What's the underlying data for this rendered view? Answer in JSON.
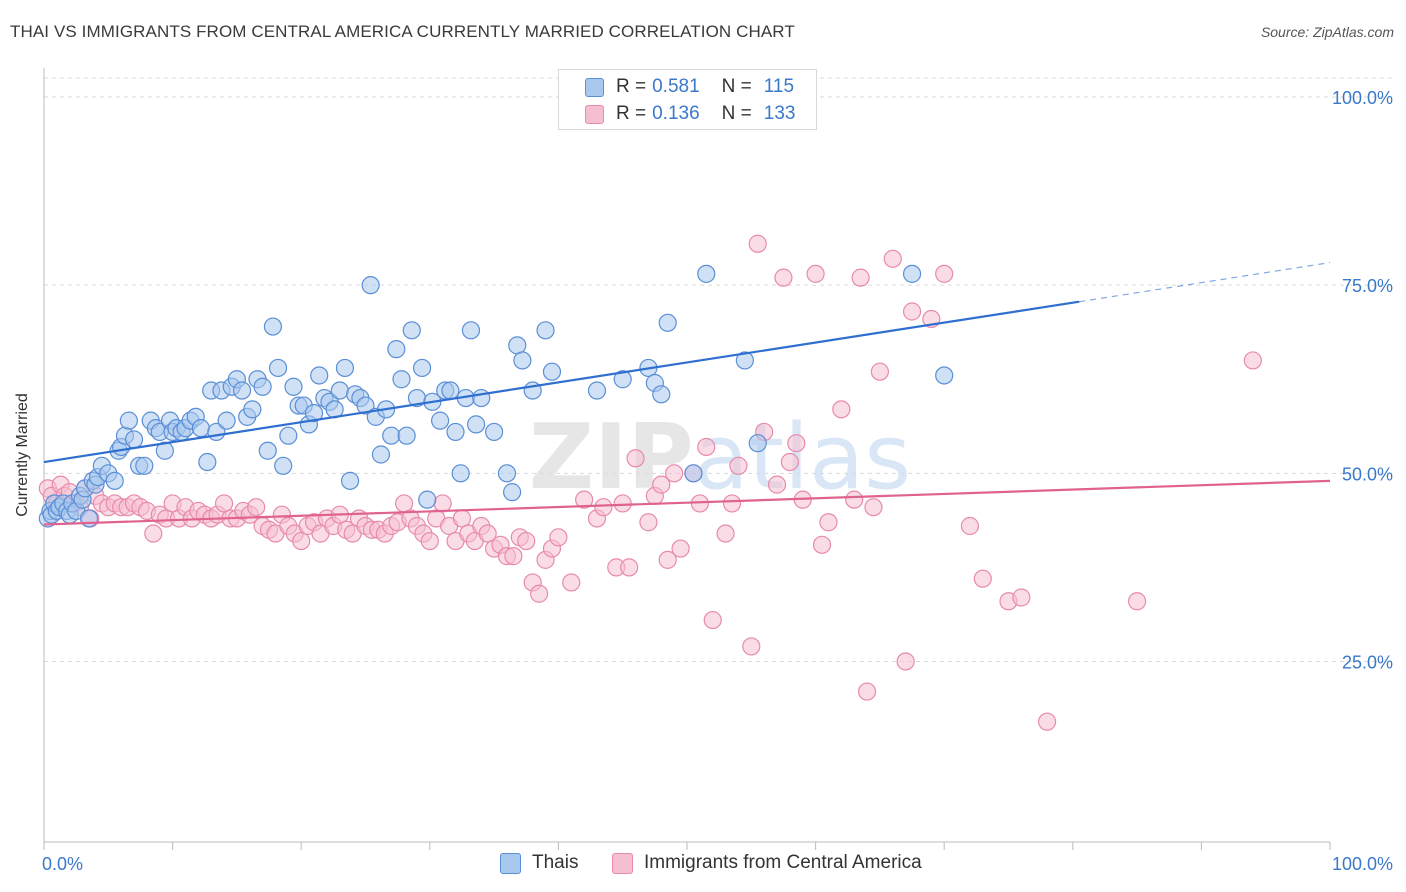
{
  "title": "THAI VS IMMIGRANTS FROM CENTRAL AMERICA CURRENTLY MARRIED CORRELATION CHART",
  "source": "Source: ZipAtlas.com",
  "colors": {
    "blue_fill": "#a9c8ee",
    "blue_stroke": "#5a8fd6",
    "blue_line": "#2f6fcf",
    "pink_fill": "#f5bfd1",
    "pink_stroke": "#e88aab",
    "pink_line": "#e0628e",
    "axis_text": "#3a78c9",
    "grid": "#d9d9d9"
  },
  "legend_top": {
    "rows": [
      {
        "r_label": "R =",
        "r_value": "0.581",
        "n_label": "N =",
        "n_value": "115"
      },
      {
        "r_label": "R =",
        "r_value": "0.136",
        "n_label": "N =",
        "n_value": "133"
      }
    ]
  },
  "chart_data": {
    "type": "scatter",
    "title": "THAI VS IMMIGRANTS FROM CENTRAL AMERICA CURRENTLY MARRIED CORRELATION CHART",
    "xlabel": "",
    "ylabel": "Currently Married",
    "xlim": [
      0,
      100
    ],
    "ylim": [
      5,
      100
    ],
    "x_tick_labels": [
      "0.0%",
      "100.0%"
    ],
    "y_tick_labels": [
      "25.0%",
      "50.0%",
      "75.0%",
      "100.0%"
    ],
    "y_ticks": [
      25,
      50,
      75,
      100
    ],
    "grid": true,
    "legend_position": "bottom",
    "watermark": "ZIPatlas",
    "series": [
      {
        "name": "Thais",
        "R": 0.581,
        "N": 115,
        "trend": {
          "x0": 0,
          "y0": 51.5,
          "x1": 80.5,
          "y1": 72.8,
          "dash_x1": 100,
          "dash_y1": 78
        },
        "points": [
          [
            0.3,
            44
          ],
          [
            0.5,
            45
          ],
          [
            0.6,
            44.5
          ],
          [
            0.8,
            46
          ],
          [
            1,
            45
          ],
          [
            1.2,
            45.5
          ],
          [
            1.5,
            46
          ],
          [
            1.8,
            45
          ],
          [
            2,
            44.5
          ],
          [
            2.2,
            46
          ],
          [
            2.5,
            45
          ],
          [
            2.8,
            47
          ],
          [
            3,
            46.5
          ],
          [
            3.2,
            48
          ],
          [
            3.5,
            44
          ],
          [
            3.8,
            49
          ],
          [
            4,
            48.5
          ],
          [
            4.2,
            49.5
          ],
          [
            4.5,
            51
          ],
          [
            5,
            50
          ],
          [
            5.5,
            49
          ],
          [
            5.8,
            53
          ],
          [
            6,
            53.5
          ],
          [
            6.3,
            55
          ],
          [
            6.6,
            57
          ],
          [
            7,
            54.5
          ],
          [
            7.4,
            51
          ],
          [
            7.8,
            51
          ],
          [
            8.3,
            57
          ],
          [
            8.7,
            56
          ],
          [
            9,
            55.5
          ],
          [
            9.4,
            53
          ],
          [
            9.8,
            57
          ],
          [
            10,
            55.5
          ],
          [
            10.3,
            56
          ],
          [
            10.7,
            55.5
          ],
          [
            11,
            56
          ],
          [
            11.4,
            57
          ],
          [
            11.8,
            57.5
          ],
          [
            12.2,
            56
          ],
          [
            12.7,
            51.5
          ],
          [
            13,
            61
          ],
          [
            13.4,
            55.5
          ],
          [
            13.8,
            61
          ],
          [
            14.2,
            57
          ],
          [
            14.6,
            61.5
          ],
          [
            15,
            62.5
          ],
          [
            15.4,
            61
          ],
          [
            15.8,
            57.5
          ],
          [
            16.2,
            58.5
          ],
          [
            16.6,
            62.5
          ],
          [
            17,
            61.5
          ],
          [
            17.4,
            53
          ],
          [
            17.8,
            69.5
          ],
          [
            18.2,
            64
          ],
          [
            18.6,
            51
          ],
          [
            19,
            55
          ],
          [
            19.4,
            61.5
          ],
          [
            19.8,
            59
          ],
          [
            20.2,
            59
          ],
          [
            20.6,
            56.5
          ],
          [
            21,
            58
          ],
          [
            21.4,
            63
          ],
          [
            21.8,
            60
          ],
          [
            22.2,
            59.5
          ],
          [
            22.6,
            58.5
          ],
          [
            23,
            61
          ],
          [
            23.4,
            64
          ],
          [
            23.8,
            49
          ],
          [
            24.2,
            60.5
          ],
          [
            24.6,
            60
          ],
          [
            25,
            59
          ],
          [
            25.4,
            75
          ],
          [
            25.8,
            57.5
          ],
          [
            26.2,
            52.5
          ],
          [
            26.6,
            58.5
          ],
          [
            27,
            55
          ],
          [
            27.4,
            66.5
          ],
          [
            27.8,
            62.5
          ],
          [
            28.2,
            55
          ],
          [
            28.6,
            69
          ],
          [
            29,
            60
          ],
          [
            29.4,
            64
          ],
          [
            29.8,
            46.5
          ],
          [
            30.2,
            59.5
          ],
          [
            30.8,
            57
          ],
          [
            31.2,
            61
          ],
          [
            31.6,
            61
          ],
          [
            32,
            55.5
          ],
          [
            32.4,
            50
          ],
          [
            32.8,
            60
          ],
          [
            33.2,
            69
          ],
          [
            33.6,
            56.5
          ],
          [
            34,
            60
          ],
          [
            35,
            55.5
          ],
          [
            36,
            50
          ],
          [
            36.4,
            47.5
          ],
          [
            36.8,
            67
          ],
          [
            37.2,
            65
          ],
          [
            38,
            61
          ],
          [
            39,
            69
          ],
          [
            39.5,
            63.5
          ],
          [
            43,
            61
          ],
          [
            45,
            62.5
          ],
          [
            47,
            64
          ],
          [
            47.5,
            62
          ],
          [
            48,
            60.5
          ],
          [
            48.5,
            70
          ],
          [
            50.5,
            50
          ],
          [
            51.5,
            76.5
          ],
          [
            54.5,
            65
          ],
          [
            55.5,
            54
          ],
          [
            67.5,
            76.5
          ],
          [
            70,
            63
          ]
        ]
      },
      {
        "name": "Immigrants from Central America",
        "R": 0.136,
        "N": 133,
        "trend": {
          "x0": 0,
          "y0": 43.2,
          "x1": 100,
          "y1": 49
        },
        "points": [
          [
            0.3,
            48
          ],
          [
            0.6,
            47
          ],
          [
            1,
            46
          ],
          [
            1.3,
            48.5
          ],
          [
            1.6,
            47
          ],
          [
            2,
            47.5
          ],
          [
            2.4,
            46
          ],
          [
            2.8,
            45.5
          ],
          [
            3.2,
            48
          ],
          [
            3.6,
            44
          ],
          [
            4,
            47
          ],
          [
            4.5,
            46
          ],
          [
            5,
            45.5
          ],
          [
            5.5,
            46
          ],
          [
            6,
            45.5
          ],
          [
            6.5,
            45.5
          ],
          [
            7,
            46
          ],
          [
            7.5,
            45.5
          ],
          [
            8,
            45
          ],
          [
            8.5,
            42
          ],
          [
            9,
            44.5
          ],
          [
            9.5,
            44
          ],
          [
            10,
            46
          ],
          [
            10.5,
            44
          ],
          [
            11,
            45.5
          ],
          [
            11.5,
            44
          ],
          [
            12,
            45
          ],
          [
            12.5,
            44.5
          ],
          [
            13,
            44
          ],
          [
            13.5,
            44.5
          ],
          [
            14,
            46
          ],
          [
            14.5,
            44
          ],
          [
            15,
            44
          ],
          [
            15.5,
            45
          ],
          [
            16,
            44.5
          ],
          [
            16.5,
            45.5
          ],
          [
            17,
            43
          ],
          [
            17.5,
            42.5
          ],
          [
            18,
            42
          ],
          [
            18.5,
            44.5
          ],
          [
            19,
            43
          ],
          [
            19.5,
            42
          ],
          [
            20,
            41
          ],
          [
            20.5,
            43
          ],
          [
            21,
            43.5
          ],
          [
            21.5,
            42
          ],
          [
            22,
            44
          ],
          [
            22.5,
            43
          ],
          [
            23,
            44.5
          ],
          [
            23.5,
            42.5
          ],
          [
            24,
            42
          ],
          [
            24.5,
            44
          ],
          [
            25,
            43
          ],
          [
            25.5,
            42.5
          ],
          [
            26,
            42.5
          ],
          [
            26.5,
            42
          ],
          [
            27,
            43
          ],
          [
            27.5,
            43.5
          ],
          [
            28,
            46
          ],
          [
            28.5,
            44
          ],
          [
            29,
            43
          ],
          [
            29.5,
            42
          ],
          [
            30,
            41
          ],
          [
            30.5,
            44
          ],
          [
            31,
            46
          ],
          [
            31.5,
            43
          ],
          [
            32,
            41
          ],
          [
            32.5,
            44
          ],
          [
            33,
            42
          ],
          [
            33.5,
            41
          ],
          [
            34,
            43
          ],
          [
            34.5,
            42
          ],
          [
            35,
            40
          ],
          [
            35.5,
            40.5
          ],
          [
            36,
            39
          ],
          [
            36.5,
            39
          ],
          [
            37,
            41.5
          ],
          [
            37.5,
            41
          ],
          [
            38,
            35.5
          ],
          [
            38.5,
            34
          ],
          [
            39,
            38.5
          ],
          [
            39.5,
            40
          ],
          [
            40,
            41.5
          ],
          [
            41,
            35.5
          ],
          [
            42,
            46.5
          ],
          [
            43,
            44
          ],
          [
            43.5,
            45.5
          ],
          [
            44.5,
            37.5
          ],
          [
            45,
            46
          ],
          [
            45.5,
            37.5
          ],
          [
            46,
            52
          ],
          [
            47,
            43.5
          ],
          [
            47.5,
            47
          ],
          [
            48,
            48.5
          ],
          [
            48.5,
            38.5
          ],
          [
            49,
            50
          ],
          [
            49.5,
            40
          ],
          [
            50.5,
            50
          ],
          [
            51,
            46
          ],
          [
            51.5,
            53.5
          ],
          [
            52,
            30.5
          ],
          [
            53,
            42
          ],
          [
            53.5,
            46
          ],
          [
            54,
            51
          ],
          [
            55,
            27
          ],
          [
            55.5,
            80.5
          ],
          [
            56,
            55.5
          ],
          [
            57,
            48.5
          ],
          [
            57.5,
            76
          ],
          [
            58,
            51.5
          ],
          [
            58.5,
            54
          ],
          [
            59,
            46.5
          ],
          [
            60,
            76.5
          ],
          [
            60.5,
            40.5
          ],
          [
            61,
            43.5
          ],
          [
            62,
            58.5
          ],
          [
            63,
            46.5
          ],
          [
            63.5,
            76
          ],
          [
            64,
            21
          ],
          [
            64.5,
            45.5
          ],
          [
            65,
            63.5
          ],
          [
            66,
            78.5
          ],
          [
            67,
            25
          ],
          [
            67.5,
            71.5
          ],
          [
            69,
            70.5
          ],
          [
            70,
            76.5
          ],
          [
            72,
            43
          ],
          [
            73,
            36
          ],
          [
            75,
            33
          ],
          [
            76,
            33.5
          ],
          [
            78,
            17
          ],
          [
            85,
            33
          ],
          [
            94,
            65
          ]
        ]
      }
    ]
  },
  "bottom_legend": {
    "items": [
      {
        "label": "Thais"
      },
      {
        "label": "Immigrants from Central America"
      }
    ]
  }
}
